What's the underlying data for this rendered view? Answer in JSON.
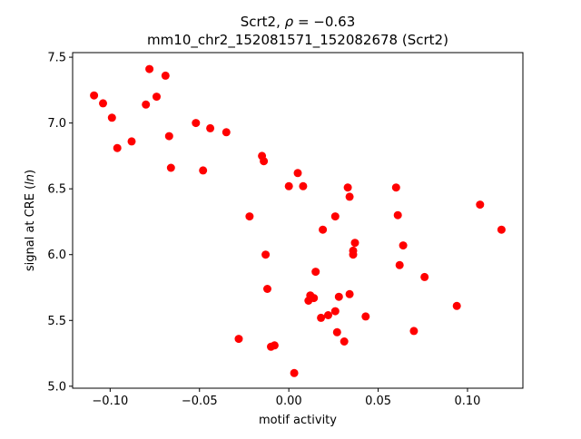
{
  "chart_data": {
    "type": "scatter",
    "title_line1": "Scrt2, ",
    "title_rho_symbol": "ρ",
    "title_rho_value": " = −0.63",
    "title_line2": "mm10_chr2_152081571_152082678 (Scrt2)",
    "xlabel": "motif activity",
    "ylabel_prefix": "signal at CRE (",
    "ylabel_italic": "ln",
    "ylabel_suffix": ")",
    "xlim": [
      -0.121,
      0.131
    ],
    "ylim": [
      4.985,
      7.535
    ],
    "xticks": [
      -0.1,
      -0.05,
      0.0,
      0.05,
      0.1
    ],
    "xtick_labels": [
      "−0.10",
      "−0.05",
      "0.00",
      "0.05",
      "0.10"
    ],
    "yticks": [
      5.0,
      5.5,
      6.0,
      6.5,
      7.0,
      7.5
    ],
    "ytick_labels": [
      "5.0",
      "5.5",
      "6.0",
      "6.5",
      "7.0",
      "7.5"
    ],
    "grid": false,
    "point_color": "#ff0000",
    "points": [
      {
        "x": -0.109,
        "y": 7.21
      },
      {
        "x": -0.104,
        "y": 7.15
      },
      {
        "x": -0.099,
        "y": 7.04
      },
      {
        "x": -0.096,
        "y": 6.81
      },
      {
        "x": -0.088,
        "y": 6.86
      },
      {
        "x": -0.08,
        "y": 7.14
      },
      {
        "x": -0.078,
        "y": 7.41
      },
      {
        "x": -0.074,
        "y": 7.2
      },
      {
        "x": -0.069,
        "y": 7.36
      },
      {
        "x": -0.067,
        "y": 6.9
      },
      {
        "x": -0.066,
        "y": 6.66
      },
      {
        "x": -0.052,
        "y": 7.0
      },
      {
        "x": -0.048,
        "y": 6.64
      },
      {
        "x": -0.044,
        "y": 6.96
      },
      {
        "x": -0.035,
        "y": 6.93
      },
      {
        "x": -0.028,
        "y": 5.36
      },
      {
        "x": -0.022,
        "y": 6.29
      },
      {
        "x": -0.015,
        "y": 6.75
      },
      {
        "x": -0.014,
        "y": 6.71
      },
      {
        "x": -0.013,
        "y": 6.0
      },
      {
        "x": -0.012,
        "y": 5.74
      },
      {
        "x": -0.01,
        "y": 5.3
      },
      {
        "x": -0.008,
        "y": 5.31
      },
      {
        "x": 0.0,
        "y": 6.52
      },
      {
        "x": 0.003,
        "y": 5.1
      },
      {
        "x": 0.005,
        "y": 6.62
      },
      {
        "x": 0.008,
        "y": 6.52
      },
      {
        "x": 0.011,
        "y": 5.65
      },
      {
        "x": 0.012,
        "y": 5.69
      },
      {
        "x": 0.014,
        "y": 5.67
      },
      {
        "x": 0.015,
        "y": 5.87
      },
      {
        "x": 0.018,
        "y": 5.52
      },
      {
        "x": 0.019,
        "y": 6.19
      },
      {
        "x": 0.022,
        "y": 5.54
      },
      {
        "x": 0.026,
        "y": 5.57
      },
      {
        "x": 0.026,
        "y": 6.29
      },
      {
        "x": 0.027,
        "y": 5.41
      },
      {
        "x": 0.028,
        "y": 5.68
      },
      {
        "x": 0.031,
        "y": 5.34
      },
      {
        "x": 0.033,
        "y": 6.51
      },
      {
        "x": 0.034,
        "y": 6.44
      },
      {
        "x": 0.034,
        "y": 5.7
      },
      {
        "x": 0.036,
        "y": 6.0
      },
      {
        "x": 0.036,
        "y": 6.03
      },
      {
        "x": 0.037,
        "y": 6.09
      },
      {
        "x": 0.043,
        "y": 5.53
      },
      {
        "x": 0.06,
        "y": 6.51
      },
      {
        "x": 0.061,
        "y": 6.3
      },
      {
        "x": 0.062,
        "y": 5.92
      },
      {
        "x": 0.064,
        "y": 6.07
      },
      {
        "x": 0.07,
        "y": 5.42
      },
      {
        "x": 0.076,
        "y": 5.83
      },
      {
        "x": 0.094,
        "y": 5.61
      },
      {
        "x": 0.107,
        "y": 6.38
      },
      {
        "x": 0.119,
        "y": 6.19
      }
    ]
  }
}
